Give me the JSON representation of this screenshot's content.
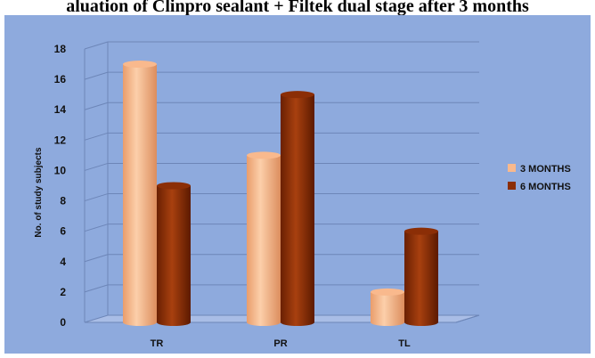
{
  "chart_data": {
    "type": "bar",
    "title": "aluation of Clinpro sealant + Filtek dual stage after 3 months",
    "ylabel": "No. of study subjects",
    "xlabel": "",
    "categories": [
      "TR",
      "PR",
      "TL"
    ],
    "series": [
      {
        "name": "3 MONTHS",
        "values": [
          17,
          11,
          2
        ],
        "color": "#f9b98d"
      },
      {
        "name": "6 MONTHS",
        "values": [
          9,
          15,
          6
        ],
        "color": "#8b2e06"
      }
    ],
    "ylim": [
      0,
      18
    ],
    "yticks": [
      0,
      2,
      4,
      6,
      8,
      10,
      12,
      14,
      16,
      18
    ],
    "grid": true,
    "legend_position": "right",
    "style": "3d-cylinder",
    "background_color": "#8eaadd"
  }
}
